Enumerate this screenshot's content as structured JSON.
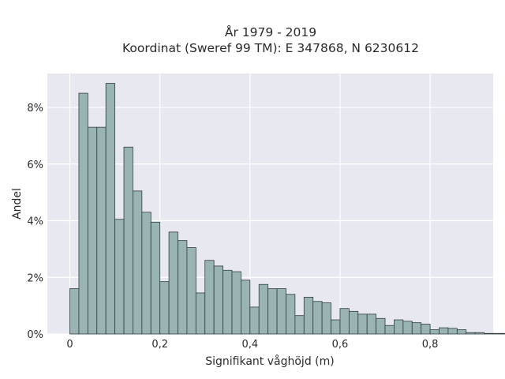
{
  "chart_data": {
    "type": "bar",
    "title_line1": "År 1979 - 2019",
    "title_line2": "Koordinat (Sweref 99 TM): E 347868, N 6230612",
    "xlabel": "Signifikant våghöjd (m)",
    "ylabel": "Andel",
    "xlim": [
      -0.05,
      0.94
    ],
    "ylim": [
      0,
      9.2
    ],
    "x_ticks": [
      0,
      0.2,
      0.4,
      0.6,
      0.8
    ],
    "x_tick_labels": [
      "0",
      "0,2",
      "0,4",
      "0,6",
      "0,8"
    ],
    "y_ticks": [
      0,
      2,
      4,
      6,
      8
    ],
    "y_tick_labels": [
      "0%",
      "2%",
      "4%",
      "6%",
      "8%"
    ],
    "bin_width": 0.02,
    "bin_start": 0.0,
    "grid": true,
    "bar_color": "#9ab3b3",
    "bar_edge_color": "#2f3f3f",
    "plot_background": "#e8e8f0",
    "values": [
      1.6,
      8.5,
      7.3,
      7.3,
      8.85,
      4.05,
      6.6,
      5.05,
      4.3,
      3.95,
      1.85,
      3.6,
      3.3,
      3.05,
      1.45,
      2.6,
      2.4,
      2.25,
      2.2,
      1.9,
      0.95,
      1.75,
      1.6,
      1.6,
      1.4,
      0.65,
      1.3,
      1.15,
      1.1,
      0.5,
      0.9,
      0.8,
      0.7,
      0.7,
      0.55,
      0.3,
      0.5,
      0.45,
      0.4,
      0.35,
      0.15,
      0.22,
      0.2,
      0.15,
      0.05,
      0.05,
      0.02,
      0.02,
      0.02,
      0.02,
      0.02,
      0.02,
      0.02
    ]
  }
}
